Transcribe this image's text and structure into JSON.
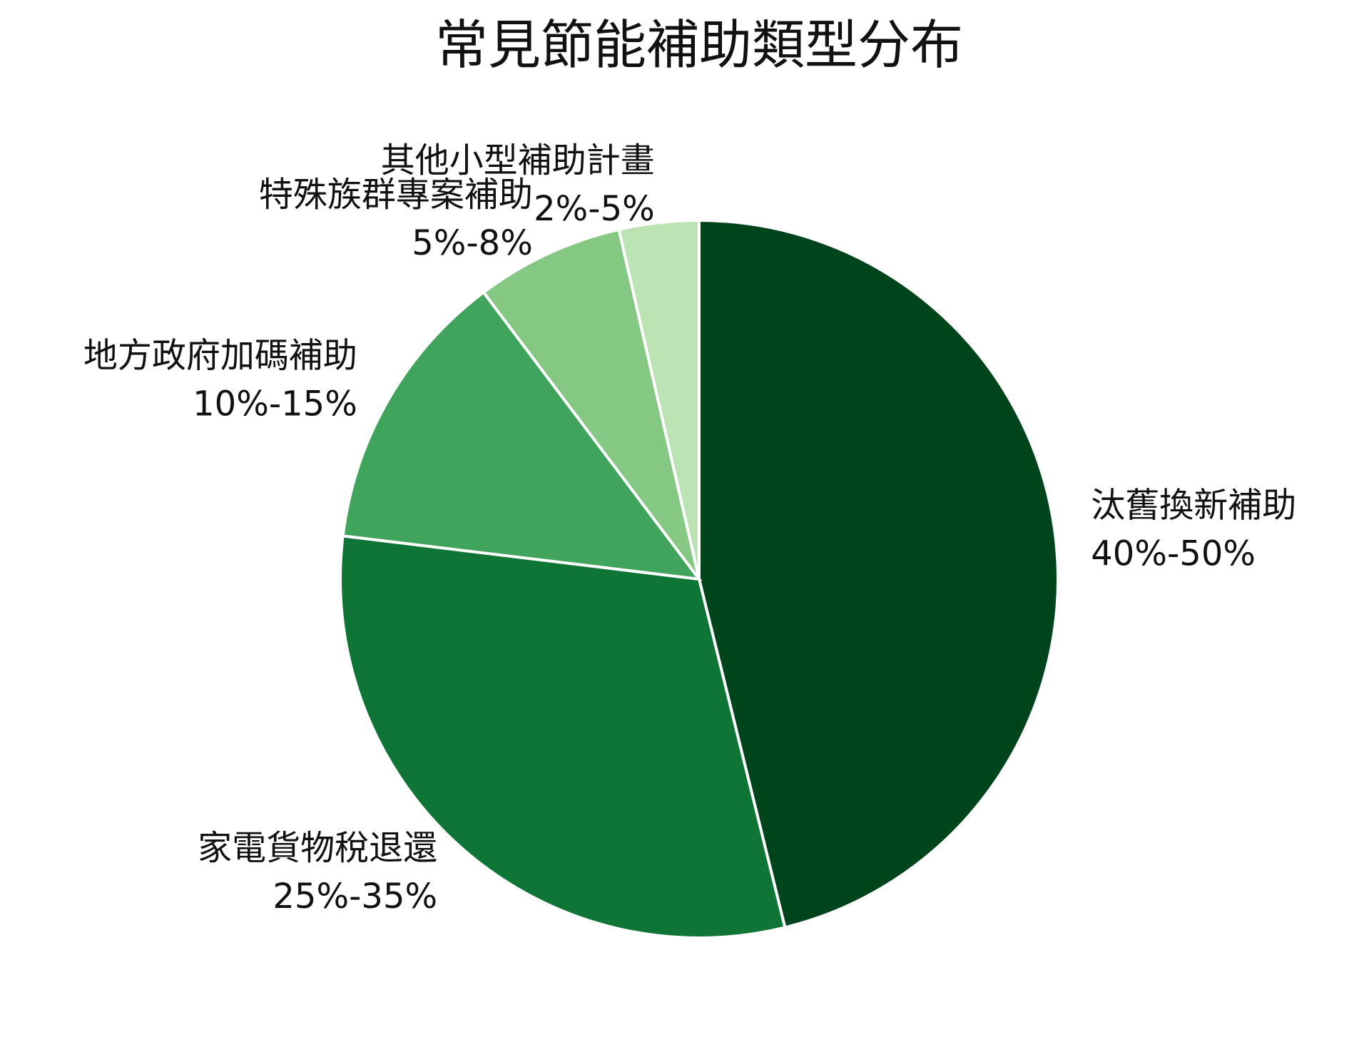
{
  "chart_data": {
    "type": "pie",
    "title": "常見節能補助類型分布",
    "categories": [
      "汰舊換新補助",
      "家電貨物稅退還",
      "地方政府加碼補助",
      "特殊族群專案補助",
      "其他小型補助計畫"
    ],
    "values": [
      45,
      30,
      12.5,
      6.5,
      3.5
    ],
    "value_labels": [
      "40%-50%",
      "25%-35%",
      "10%-15%",
      "5%-8%",
      "2%-5%"
    ],
    "colors": [
      "#00441b",
      "#0f7536",
      "#41a45c",
      "#84c883",
      "#bbe3b4"
    ]
  }
}
